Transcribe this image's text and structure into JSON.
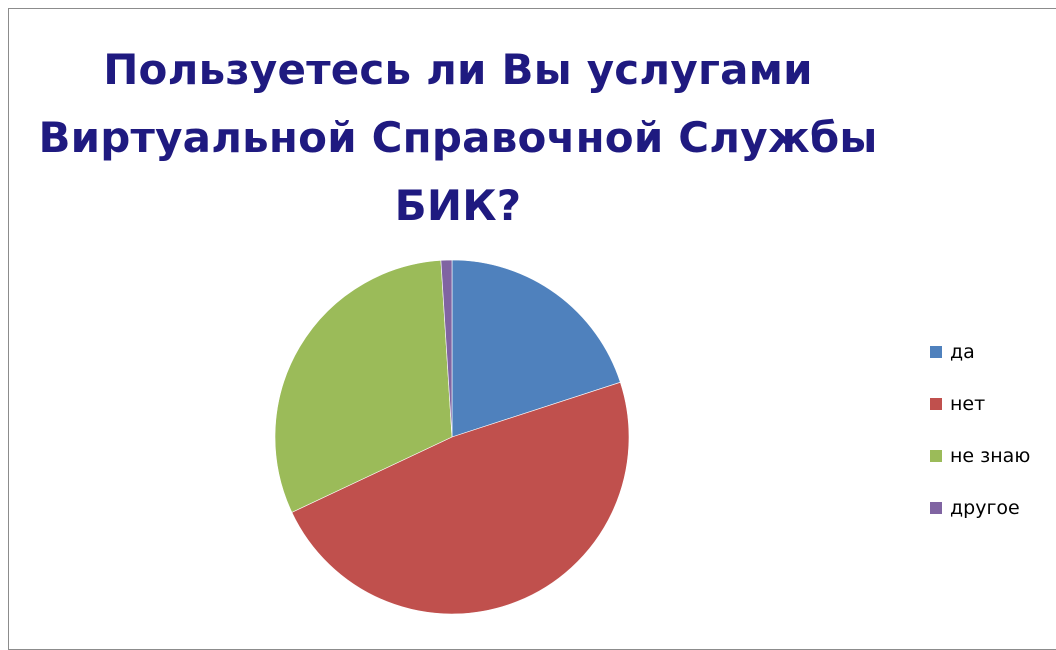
{
  "chart_data": {
    "type": "pie",
    "title_lines": [
      "Пользуетесь ли Вы услугами",
      "Виртуальной Справочной Службы",
      "БИК?"
    ],
    "categories": [
      "да",
      "нет",
      "не знаю",
      "другое"
    ],
    "values": [
      20,
      48,
      31,
      1
    ],
    "colors": [
      "#4F81BD",
      "#C0504D",
      "#9BBB59",
      "#8064A2"
    ],
    "legend_position": "right",
    "start_angle": "12 o'clock",
    "direction": "clockwise"
  }
}
